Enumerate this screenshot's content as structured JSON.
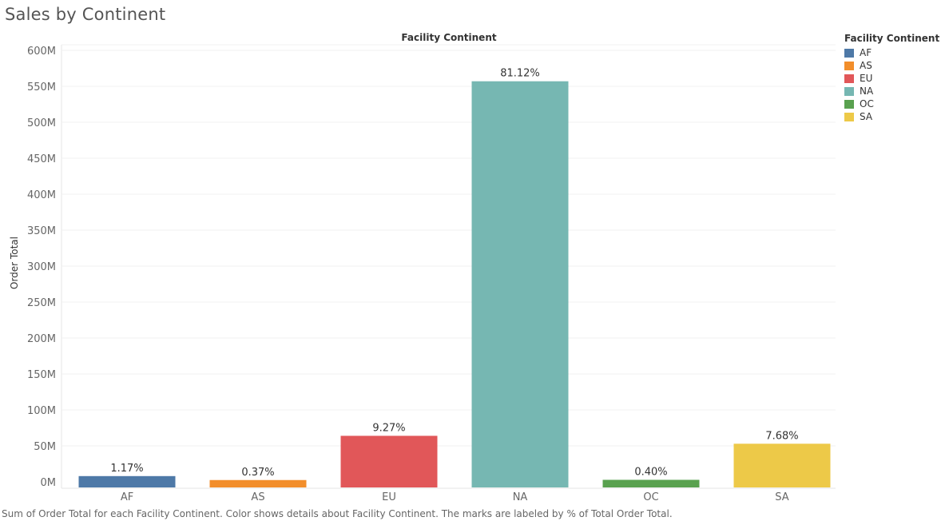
{
  "title": "Sales by Continent",
  "header": "Facility Continent",
  "footer": "Sum of Order Total for each Facility Continent.  Color shows details about Facility Continent.  The marks are labeled by % of Total Order Total.",
  "legend": {
    "title": "Facility Continent",
    "items": [
      {
        "label": "AF",
        "color": "#4e79a7"
      },
      {
        "label": "AS",
        "color": "#f28e2b"
      },
      {
        "label": "EU",
        "color": "#e15759"
      },
      {
        "label": "NA",
        "color": "#76b7b2"
      },
      {
        "label": "OC",
        "color": "#59a14f"
      },
      {
        "label": "SA",
        "color": "#edc948"
      }
    ]
  },
  "chart_data": {
    "type": "bar",
    "title": "Sales by Continent",
    "xlabel": "",
    "ylabel": "Order Total",
    "categories": [
      "AF",
      "AS",
      "EU",
      "NA",
      "OC",
      "SA"
    ],
    "values": [
      8000000,
      2500000,
      64000000,
      557000000,
      2800000,
      53000000
    ],
    "labels": [
      "1.17%",
      "0.37%",
      "9.27%",
      "81.12%",
      "0.40%",
      "7.68%"
    ],
    "colors": [
      "#4e79a7",
      "#f28e2b",
      "#e15759",
      "#76b7b2",
      "#59a14f",
      "#edc948"
    ],
    "ylim": [
      0,
      600000000
    ],
    "yticks": [
      0,
      50000000,
      100000000,
      150000000,
      200000000,
      250000000,
      300000000,
      350000000,
      400000000,
      450000000,
      500000000,
      550000000,
      600000000
    ],
    "ytick_labels": [
      "0M",
      "50M",
      "100M",
      "150M",
      "200M",
      "250M",
      "300M",
      "350M",
      "400M",
      "450M",
      "500M",
      "550M",
      "600M"
    ],
    "grid": true,
    "legend": "right"
  }
}
